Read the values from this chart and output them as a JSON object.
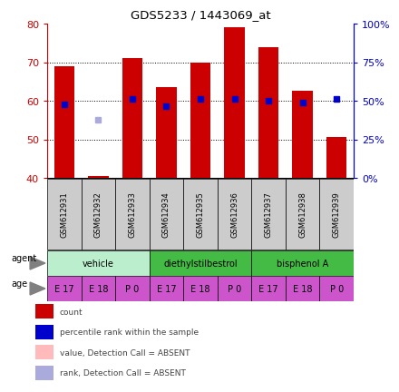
{
  "title": "GDS5233 / 1443069_at",
  "samples": [
    "GSM612931",
    "GSM612932",
    "GSM612933",
    "GSM612934",
    "GSM612935",
    "GSM612936",
    "GSM612937",
    "GSM612938",
    "GSM612939"
  ],
  "count_values": [
    69.0,
    40.5,
    71.0,
    63.5,
    70.0,
    79.0,
    74.0,
    62.5,
    50.5
  ],
  "percentile_values": [
    59.0,
    null,
    60.5,
    58.5,
    60.5,
    60.5,
    60.0,
    59.5,
    60.5
  ],
  "absent_rank_values": [
    null,
    55.0,
    null,
    null,
    null,
    null,
    null,
    null,
    null
  ],
  "ymin": 40,
  "ymax": 80,
  "yticks": [
    40,
    50,
    60,
    70,
    80
  ],
  "right_yticks_vals": [
    0,
    25,
    50,
    75,
    100
  ],
  "right_ylabels": [
    "0%",
    "25%",
    "50%",
    "75%",
    "100%"
  ],
  "bar_color": "#cc0000",
  "bar_bottom": 40,
  "bar_width": 0.6,
  "percentile_color": "#0000cc",
  "absent_rank_color": "#aaaadd",
  "agent_spans": [
    {
      "label": "vehicle",
      "start": 0,
      "end": 3,
      "color": "#bbeecc"
    },
    {
      "label": "diethylstilbestrol",
      "start": 3,
      "end": 6,
      "color": "#44bb44"
    },
    {
      "label": "bisphenol A",
      "start": 6,
      "end": 9,
      "color": "#44bb44"
    }
  ],
  "age_labels": [
    "E 17",
    "E 18",
    "P 0",
    "E 17",
    "E 18",
    "P 0",
    "E 17",
    "E 18",
    "P 0"
  ],
  "age_color": "#cc55cc",
  "sample_label_bg": "#cccccc",
  "ylabel_color": "#cc0000",
  "right_ylabel_color": "#0000cc",
  "legend_items": [
    {
      "color": "#cc0000",
      "label": "count"
    },
    {
      "color": "#0000cc",
      "label": "percentile rank within the sample"
    },
    {
      "color": "#ffbbbb",
      "label": "value, Detection Call = ABSENT"
    },
    {
      "color": "#aaaadd",
      "label": "rank, Detection Call = ABSENT"
    }
  ]
}
